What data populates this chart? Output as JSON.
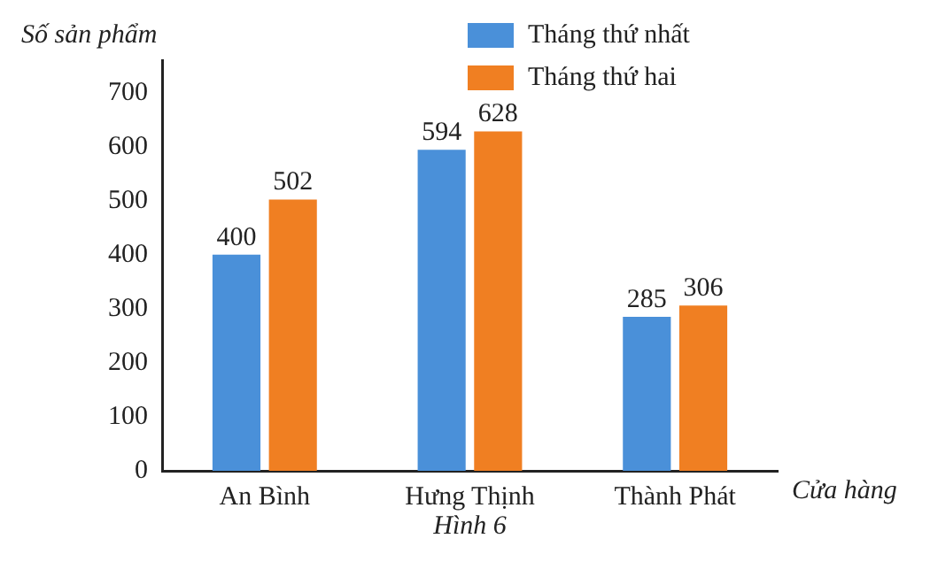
{
  "chart_data": {
    "type": "bar",
    "xlabel": "Cửa hàng",
    "ylabel": "Số sản phẩm",
    "categories": [
      "An Bình",
      "Hưng Thịnh",
      "Thành Phát"
    ],
    "series": [
      {
        "name": "Tháng thứ nhất",
        "color": "#4a90d9",
        "values": [
          400,
          594,
          285
        ]
      },
      {
        "name": "Tháng thứ hai",
        "color": "#f07f22",
        "values": [
          502,
          628,
          306
        ]
      }
    ],
    "ylim": [
      0,
      760
    ],
    "yticks": [
      0,
      100,
      200,
      300,
      400,
      500,
      600,
      700
    ],
    "grid": false,
    "legend": "top right",
    "data_labels": true,
    "annotations": [
      "Hình 6"
    ]
  }
}
